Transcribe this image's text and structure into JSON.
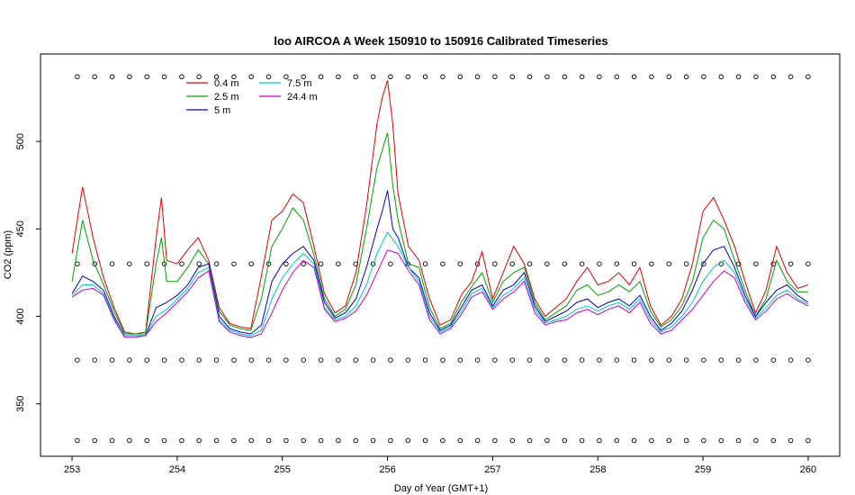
{
  "chart_data": {
    "type": "line",
    "title": "loo AIRCOA A  Week 150910 to 150916  Calibrated Timeseries",
    "xlabel": "Day of Year (GMT+1)",
    "ylabel": "CO2 (ppm)",
    "xlim": [
      252.7,
      260.3
    ],
    "ylim": [
      320,
      550
    ],
    "x_ticks": [
      "253",
      "254",
      "255",
      "256",
      "257",
      "258",
      "259",
      "260"
    ],
    "y_ticks": [
      "350",
      "400",
      "450",
      "500"
    ],
    "legend_position": "top-left",
    "series": [
      {
        "name": "0.4 m",
        "color": "#e00000",
        "x": [
          253.0,
          253.1,
          253.2,
          253.3,
          253.4,
          253.5,
          253.6,
          253.7,
          253.8,
          253.85,
          253.9,
          254.0,
          254.1,
          254.2,
          254.3,
          254.4,
          254.5,
          254.6,
          254.7,
          254.8,
          254.9,
          255.0,
          255.1,
          255.2,
          255.3,
          255.4,
          255.5,
          255.6,
          255.7,
          255.8,
          255.9,
          255.95,
          256.0,
          256.05,
          256.1,
          256.2,
          256.3,
          256.4,
          256.5,
          256.6,
          256.7,
          256.8,
          256.9,
          257.0,
          257.1,
          257.2,
          257.3,
          257.4,
          257.5,
          257.6,
          257.7,
          257.8,
          257.9,
          258.0,
          258.1,
          258.2,
          258.3,
          258.4,
          258.5,
          258.6,
          258.7,
          258.8,
          258.9,
          259.0,
          259.1,
          259.2,
          259.3,
          259.4,
          259.5,
          259.6,
          259.7,
          259.8,
          259.9,
          260.0
        ],
        "values": [
          436,
          474,
          445,
          422,
          405,
          391,
          390,
          391,
          445,
          468,
          432,
          430,
          438,
          445,
          432,
          405,
          396,
          394,
          393,
          423,
          455,
          460,
          470,
          465,
          440,
          413,
          402,
          406,
          425,
          463,
          510,
          525,
          535,
          510,
          470,
          440,
          432,
          410,
          395,
          398,
          412,
          420,
          437,
          410,
          425,
          440,
          430,
          410,
          400,
          405,
          410,
          420,
          428,
          418,
          420,
          425,
          418,
          428,
          406,
          395,
          400,
          410,
          430,
          460,
          468,
          455,
          440,
          420,
          402,
          415,
          440,
          425,
          416,
          418
        ]
      },
      {
        "name": "2.5 m",
        "color": "#00a000",
        "x": [
          253.0,
          253.1,
          253.2,
          253.3,
          253.4,
          253.5,
          253.6,
          253.7,
          253.8,
          253.85,
          253.9,
          254.0,
          254.1,
          254.2,
          254.3,
          254.4,
          254.5,
          254.6,
          254.7,
          254.8,
          254.9,
          255.0,
          255.1,
          255.2,
          255.3,
          255.4,
          255.5,
          255.6,
          255.7,
          255.8,
          255.9,
          255.95,
          256.0,
          256.05,
          256.1,
          256.2,
          256.3,
          256.4,
          256.5,
          256.6,
          256.7,
          256.8,
          256.9,
          257.0,
          257.1,
          257.2,
          257.3,
          257.4,
          257.5,
          257.6,
          257.7,
          257.8,
          257.9,
          258.0,
          258.1,
          258.2,
          258.3,
          258.4,
          258.5,
          258.6,
          258.7,
          258.8,
          258.9,
          259.0,
          259.1,
          259.2,
          259.3,
          259.4,
          259.5,
          259.6,
          259.7,
          259.8,
          259.9,
          260.0
        ],
        "values": [
          420,
          455,
          432,
          418,
          403,
          390,
          390,
          390,
          430,
          445,
          420,
          420,
          428,
          438,
          430,
          403,
          395,
          393,
          392,
          410,
          440,
          450,
          462,
          455,
          435,
          410,
          400,
          404,
          418,
          450,
          485,
          495,
          505,
          475,
          455,
          430,
          428,
          405,
          393,
          396,
          408,
          417,
          425,
          408,
          420,
          425,
          428,
          408,
          398,
          402,
          406,
          415,
          418,
          412,
          414,
          418,
          414,
          420,
          403,
          394,
          398,
          406,
          420,
          445,
          455,
          450,
          432,
          415,
          400,
          410,
          432,
          420,
          414,
          414
        ]
      },
      {
        "name": "5 m",
        "color": "#0000d0",
        "x": [
          253.0,
          253.1,
          253.2,
          253.3,
          253.4,
          253.5,
          253.6,
          253.7,
          253.8,
          253.9,
          254.0,
          254.1,
          254.2,
          254.3,
          254.4,
          254.5,
          254.6,
          254.7,
          254.8,
          254.9,
          255.0,
          255.1,
          255.2,
          255.3,
          255.4,
          255.5,
          255.6,
          255.7,
          255.8,
          255.9,
          255.95,
          256.0,
          256.05,
          256.1,
          256.2,
          256.3,
          256.4,
          256.5,
          256.6,
          256.7,
          256.8,
          256.9,
          257.0,
          257.1,
          257.2,
          257.3,
          257.4,
          257.5,
          257.6,
          257.7,
          257.8,
          257.9,
          258.0,
          258.1,
          258.2,
          258.3,
          258.4,
          258.5,
          258.6,
          258.7,
          258.8,
          258.9,
          259.0,
          259.1,
          259.2,
          259.3,
          259.4,
          259.5,
          259.6,
          259.7,
          259.8,
          259.9,
          260.0
        ],
        "values": [
          413,
          423,
          420,
          415,
          400,
          389,
          389,
          389,
          405,
          408,
          412,
          418,
          428,
          430,
          400,
          393,
          391,
          390,
          395,
          420,
          430,
          436,
          440,
          432,
          408,
          399,
          402,
          410,
          428,
          450,
          460,
          472,
          450,
          445,
          428,
          422,
          402,
          392,
          395,
          405,
          415,
          418,
          406,
          415,
          418,
          425,
          406,
          397,
          400,
          403,
          408,
          410,
          405,
          408,
          410,
          406,
          412,
          400,
          392,
          396,
          403,
          415,
          430,
          438,
          440,
          428,
          412,
          400,
          408,
          415,
          418,
          412,
          408
        ]
      },
      {
        "name": "7.5 m",
        "color": "#00c8c8",
        "x": [
          253.0,
          253.1,
          253.2,
          253.3,
          253.4,
          253.5,
          253.6,
          253.7,
          253.8,
          253.9,
          254.0,
          254.1,
          254.2,
          254.3,
          254.4,
          254.5,
          254.6,
          254.7,
          254.8,
          254.9,
          255.0,
          255.1,
          255.2,
          255.3,
          255.4,
          255.5,
          255.6,
          255.7,
          255.8,
          255.9,
          256.0,
          256.1,
          256.2,
          256.3,
          256.4,
          256.5,
          256.6,
          256.7,
          256.8,
          256.9,
          257.0,
          257.1,
          257.2,
          257.3,
          257.4,
          257.5,
          257.6,
          257.7,
          257.8,
          257.9,
          258.0,
          258.1,
          258.2,
          258.3,
          258.4,
          258.5,
          258.6,
          258.7,
          258.8,
          258.9,
          259.0,
          259.1,
          259.2,
          259.3,
          259.4,
          259.5,
          259.6,
          259.7,
          259.8,
          259.9,
          260.0
        ],
        "values": [
          412,
          418,
          418,
          413,
          399,
          389,
          389,
          389,
          400,
          404,
          410,
          416,
          425,
          428,
          398,
          392,
          390,
          389,
          392,
          410,
          422,
          430,
          436,
          430,
          405,
          398,
          400,
          406,
          418,
          436,
          448,
          440,
          428,
          420,
          400,
          391,
          394,
          403,
          413,
          416,
          405,
          412,
          416,
          422,
          404,
          396,
          398,
          400,
          404,
          406,
          403,
          406,
          408,
          404,
          410,
          398,
          391,
          394,
          400,
          408,
          420,
          428,
          432,
          425,
          410,
          399,
          405,
          412,
          415,
          410,
          407
        ]
      },
      {
        "name": "24.4 m",
        "color": "#c800c8",
        "x": [
          253.0,
          253.1,
          253.2,
          253.3,
          253.4,
          253.5,
          253.6,
          253.7,
          253.8,
          253.9,
          254.0,
          254.1,
          254.2,
          254.3,
          254.4,
          254.5,
          254.6,
          254.7,
          254.8,
          254.9,
          255.0,
          255.1,
          255.2,
          255.3,
          255.4,
          255.5,
          255.6,
          255.7,
          255.8,
          255.9,
          256.0,
          256.1,
          256.2,
          256.3,
          256.4,
          256.5,
          256.6,
          256.7,
          256.8,
          256.9,
          257.0,
          257.1,
          257.2,
          257.3,
          257.4,
          257.5,
          257.6,
          257.7,
          257.8,
          257.9,
          258.0,
          258.1,
          258.2,
          258.3,
          258.4,
          258.5,
          258.6,
          258.7,
          258.8,
          258.9,
          259.0,
          259.1,
          259.2,
          259.3,
          259.4,
          259.5,
          259.6,
          259.7,
          259.8,
          259.9,
          260.0
        ],
        "values": [
          411,
          415,
          416,
          412,
          398,
          388,
          388,
          389,
          397,
          402,
          408,
          414,
          422,
          426,
          397,
          391,
          389,
          388,
          390,
          402,
          415,
          425,
          432,
          428,
          404,
          397,
          399,
          403,
          412,
          425,
          438,
          436,
          426,
          418,
          398,
          390,
          393,
          401,
          411,
          414,
          404,
          410,
          414,
          420,
          402,
          395,
          397,
          398,
          402,
          404,
          401,
          404,
          406,
          402,
          408,
          396,
          390,
          392,
          398,
          404,
          412,
          420,
          426,
          422,
          408,
          398,
          403,
          410,
          413,
          409,
          406
        ]
      }
    ],
    "reference_markers": [
      {
        "y": 537,
        "marker": "o"
      },
      {
        "y": 430,
        "marker": "o"
      },
      {
        "y": 375,
        "marker": "o"
      },
      {
        "y": 329,
        "marker": "o"
      }
    ]
  }
}
